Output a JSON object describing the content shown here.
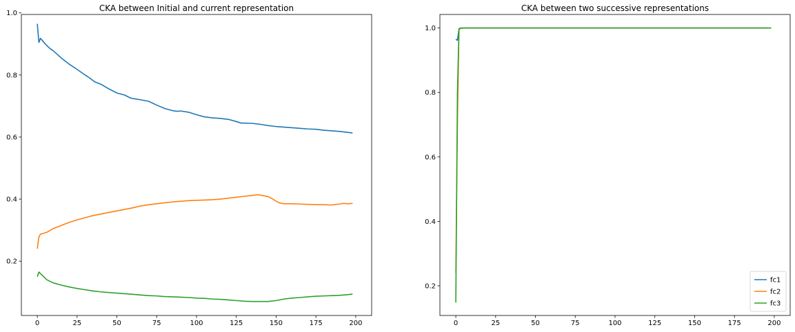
{
  "chart_data": [
    {
      "type": "line",
      "title": "CKA between Initial and current representation",
      "xlabel": "",
      "ylabel": "",
      "xlim": [
        -10,
        210
      ],
      "ylim": [
        0.025,
        0.995
      ],
      "xticks": [
        0,
        25,
        50,
        75,
        100,
        125,
        150,
        175,
        200
      ],
      "yticks": [
        0.2,
        0.4,
        0.6,
        0.8,
        1.0
      ],
      "xtick_labels": [
        "0",
        "25",
        "50",
        "75",
        "100",
        "125",
        "150",
        "175",
        "200"
      ],
      "ytick_labels": [
        "0.2",
        "0.4",
        "0.6",
        "0.8",
        "1.0"
      ],
      "grid": false,
      "legend": null,
      "series": [
        {
          "name": "fc1",
          "color": "#1f77b4",
          "points": [
            [
              0,
              0.965
            ],
            [
              1,
              0.905
            ],
            [
              2,
              0.918
            ],
            [
              5,
              0.9
            ],
            [
              8,
              0.885
            ],
            [
              10,
              0.878
            ],
            [
              15,
              0.855
            ],
            [
              20,
              0.835
            ],
            [
              25,
              0.818
            ],
            [
              30,
              0.8
            ],
            [
              33,
              0.79
            ],
            [
              36,
              0.778
            ],
            [
              40,
              0.77
            ],
            [
              45,
              0.755
            ],
            [
              50,
              0.742
            ],
            [
              55,
              0.735
            ],
            [
              58,
              0.727
            ],
            [
              60,
              0.724
            ],
            [
              65,
              0.72
            ],
            [
              70,
              0.715
            ],
            [
              75,
              0.703
            ],
            [
              80,
              0.692
            ],
            [
              85,
              0.685
            ],
            [
              88,
              0.683
            ],
            [
              90,
              0.684
            ],
            [
              95,
              0.68
            ],
            [
              100,
              0.672
            ],
            [
              105,
              0.665
            ],
            [
              110,
              0.662
            ],
            [
              115,
              0.66
            ],
            [
              120,
              0.657
            ],
            [
              125,
              0.65
            ],
            [
              128,
              0.645
            ],
            [
              130,
              0.645
            ],
            [
              135,
              0.644
            ],
            [
              140,
              0.641
            ],
            [
              145,
              0.637
            ],
            [
              150,
              0.634
            ],
            [
              155,
              0.632
            ],
            [
              160,
              0.63
            ],
            [
              165,
              0.628
            ],
            [
              170,
              0.626
            ],
            [
              175,
              0.625
            ],
            [
              180,
              0.622
            ],
            [
              185,
              0.62
            ],
            [
              190,
              0.618
            ],
            [
              195,
              0.615
            ],
            [
              198,
              0.613
            ]
          ]
        },
        {
          "name": "fc2",
          "color": "#ff7f0e",
          "points": [
            [
              0,
              0.24
            ],
            [
              1,
              0.278
            ],
            [
              2,
              0.287
            ],
            [
              4,
              0.29
            ],
            [
              6,
              0.293
            ],
            [
              10,
              0.305
            ],
            [
              15,
              0.315
            ],
            [
              20,
              0.325
            ],
            [
              25,
              0.333
            ],
            [
              30,
              0.34
            ],
            [
              35,
              0.347
            ],
            [
              40,
              0.352
            ],
            [
              45,
              0.357
            ],
            [
              50,
              0.362
            ],
            [
              55,
              0.367
            ],
            [
              60,
              0.372
            ],
            [
              65,
              0.378
            ],
            [
              70,
              0.382
            ],
            [
              75,
              0.385
            ],
            [
              80,
              0.388
            ],
            [
              85,
              0.391
            ],
            [
              90,
              0.393
            ],
            [
              95,
              0.395
            ],
            [
              100,
              0.396
            ],
            [
              105,
              0.397
            ],
            [
              110,
              0.398
            ],
            [
              115,
              0.4
            ],
            [
              120,
              0.403
            ],
            [
              125,
              0.406
            ],
            [
              130,
              0.409
            ],
            [
              135,
              0.412
            ],
            [
              138,
              0.414
            ],
            [
              140,
              0.413
            ],
            [
              145,
              0.408
            ],
            [
              148,
              0.4
            ],
            [
              150,
              0.393
            ],
            [
              152,
              0.388
            ],
            [
              155,
              0.385
            ],
            [
              160,
              0.385
            ],
            [
              165,
              0.384
            ],
            [
              170,
              0.383
            ],
            [
              175,
              0.382
            ],
            [
              180,
              0.382
            ],
            [
              185,
              0.381
            ],
            [
              188,
              0.383
            ],
            [
              190,
              0.384
            ],
            [
              192,
              0.386
            ],
            [
              195,
              0.385
            ],
            [
              198,
              0.386
            ]
          ]
        },
        {
          "name": "fc3",
          "color": "#2ca02c",
          "points": [
            [
              0,
              0.15
            ],
            [
              1,
              0.165
            ],
            [
              2,
              0.16
            ],
            [
              4,
              0.15
            ],
            [
              6,
              0.14
            ],
            [
              10,
              0.13
            ],
            [
              15,
              0.123
            ],
            [
              20,
              0.117
            ],
            [
              25,
              0.112
            ],
            [
              30,
              0.108
            ],
            [
              35,
              0.104
            ],
            [
              40,
              0.101
            ],
            [
              45,
              0.099
            ],
            [
              50,
              0.097
            ],
            [
              55,
              0.095
            ],
            [
              60,
              0.093
            ],
            [
              65,
              0.091
            ],
            [
              70,
              0.089
            ],
            [
              75,
              0.088
            ],
            [
              80,
              0.086
            ],
            [
              85,
              0.085
            ],
            [
              90,
              0.084
            ],
            [
              95,
              0.083
            ],
            [
              100,
              0.081
            ],
            [
              105,
              0.08
            ],
            [
              110,
              0.078
            ],
            [
              115,
              0.077
            ],
            [
              120,
              0.075
            ],
            [
              125,
              0.073
            ],
            [
              130,
              0.071
            ],
            [
              135,
              0.07
            ],
            [
              140,
              0.07
            ],
            [
              145,
              0.07
            ],
            [
              150,
              0.073
            ],
            [
              155,
              0.078
            ],
            [
              160,
              0.081
            ],
            [
              165,
              0.083
            ],
            [
              170,
              0.085
            ],
            [
              175,
              0.087
            ],
            [
              180,
              0.088
            ],
            [
              185,
              0.089
            ],
            [
              190,
              0.09
            ],
            [
              195,
              0.092
            ],
            [
              198,
              0.094
            ]
          ]
        }
      ]
    },
    {
      "type": "line",
      "title": "CKA between two successive representations",
      "xlabel": "",
      "ylabel": "",
      "xlim": [
        -10,
        210
      ],
      "ylim": [
        0.108,
        1.042
      ],
      "xticks": [
        0,
        25,
        50,
        75,
        100,
        125,
        150,
        175,
        200
      ],
      "yticks": [
        0.2,
        0.4,
        0.6,
        0.8,
        1.0
      ],
      "xtick_labels": [
        "0",
        "25",
        "50",
        "75",
        "100",
        "125",
        "150",
        "175",
        "200"
      ],
      "ytick_labels": [
        "0.2",
        "0.4",
        "0.6",
        "0.8",
        "1.0"
      ],
      "grid": false,
      "legend": "lower right",
      "series": [
        {
          "name": "fc1",
          "color": "#1f77b4",
          "points": [
            [
              0,
              0.965
            ],
            [
              1,
              0.962
            ],
            [
              2,
              0.997
            ],
            [
              3,
              0.999
            ],
            [
              5,
              1.0
            ],
            [
              198,
              1.0
            ]
          ]
        },
        {
          "name": "fc2",
          "color": "#ff7f0e",
          "points": [
            [
              0,
              0.24
            ],
            [
              1,
              0.7
            ],
            [
              2,
              0.995
            ],
            [
              3,
              0.999
            ],
            [
              5,
              1.0
            ],
            [
              198,
              1.0
            ]
          ]
        },
        {
          "name": "fc3",
          "color": "#2ca02c",
          "points": [
            [
              0,
              0.148
            ],
            [
              1,
              0.8
            ],
            [
              2,
              0.998
            ],
            [
              3,
              1.0
            ],
            [
              5,
              1.0
            ],
            [
              198,
              1.0
            ]
          ]
        }
      ]
    }
  ]
}
